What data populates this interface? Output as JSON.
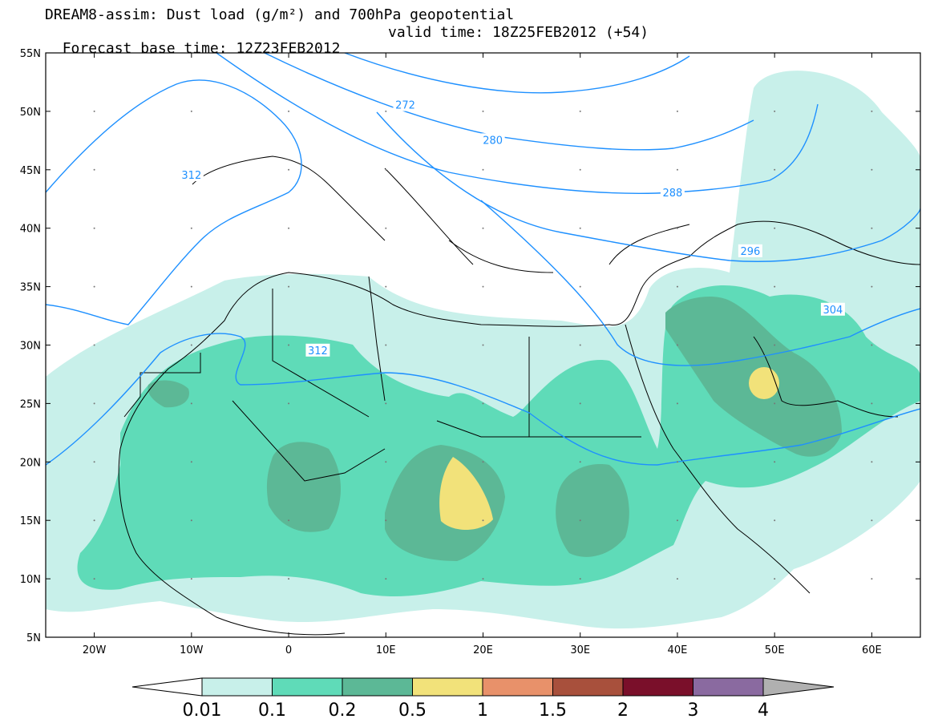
{
  "title": {
    "line1": "DREAM8-assim: Dust load (g/m²) and 700hPa geopotential",
    "base_time": "Forecast base time: 12Z23FEB2012",
    "valid_time": "valid time: 18Z25FEB2012 (+54)"
  },
  "map": {
    "lon_range": [
      -25,
      65
    ],
    "lat_range": [
      5,
      55
    ],
    "lat_ticks": [
      {
        "value": 55,
        "label": "55N"
      },
      {
        "value": 50,
        "label": "50N"
      },
      {
        "value": 45,
        "label": "45N"
      },
      {
        "value": 40,
        "label": "40N"
      },
      {
        "value": 35,
        "label": "35N"
      },
      {
        "value": 30,
        "label": "30N"
      },
      {
        "value": 25,
        "label": "25N"
      },
      {
        "value": 20,
        "label": "20N"
      },
      {
        "value": 15,
        "label": "15N"
      },
      {
        "value": 10,
        "label": "10N"
      },
      {
        "value": 5,
        "label": "5N"
      }
    ],
    "lon_ticks": [
      {
        "value": -20,
        "label": "20W"
      },
      {
        "value": -10,
        "label": "10W"
      },
      {
        "value": 0,
        "label": "0"
      },
      {
        "value": 10,
        "label": "10E"
      },
      {
        "value": 20,
        "label": "20E"
      },
      {
        "value": 30,
        "label": "30E"
      },
      {
        "value": 40,
        "label": "40E"
      },
      {
        "value": 50,
        "label": "50E"
      },
      {
        "value": 60,
        "label": "60E"
      }
    ],
    "contour_color": "#1e90ff",
    "contour_labels": [
      {
        "text": "272",
        "lon": 12,
        "lat": 50.5
      },
      {
        "text": "280",
        "lon": 21,
        "lat": 47.5
      },
      {
        "text": "288",
        "lon": 39.5,
        "lat": 43
      },
      {
        "text": "296",
        "lon": 47.5,
        "lat": 38
      },
      {
        "text": "304",
        "lon": 56,
        "lat": 33
      },
      {
        "text": "312",
        "lon": 3,
        "lat": 29.5
      },
      {
        "text": "312",
        "lon": -10,
        "lat": 44.5
      }
    ]
  },
  "colorbar": {
    "labels": [
      "0.01",
      "0.1",
      "0.2",
      "0.5",
      "1",
      "1.5",
      "2",
      "3",
      "4"
    ],
    "colors": [
      "#ffffff",
      "#c8f0ea",
      "#5fdbb8",
      "#5cb896",
      "#f2e27a",
      "#e8916a",
      "#a8503c",
      "#7a0f2a",
      "#8a6aa0",
      "#b0b0b0"
    ]
  }
}
